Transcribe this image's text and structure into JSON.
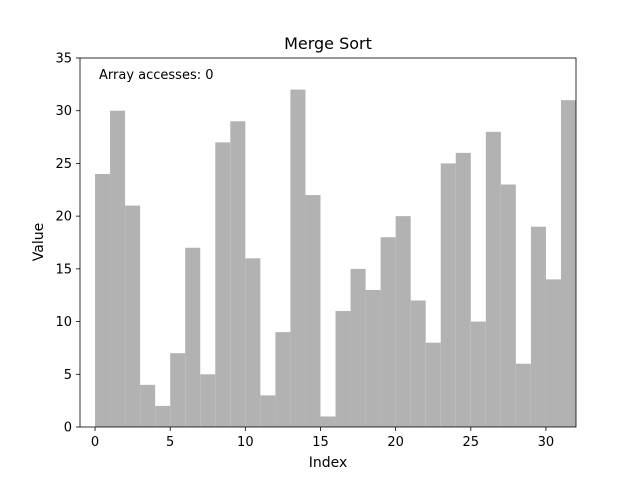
{
  "chart_data": {
    "type": "bar",
    "title": "Merge Sort",
    "xlabel": "Index",
    "ylabel": "Value",
    "annotation": "Array accesses: 0",
    "x": [
      0,
      1,
      2,
      3,
      4,
      5,
      6,
      7,
      8,
      9,
      10,
      11,
      12,
      13,
      14,
      15,
      16,
      17,
      18,
      19,
      20,
      21,
      22,
      23,
      24,
      25,
      26,
      27,
      28,
      29,
      30,
      31
    ],
    "values": [
      24,
      30,
      21,
      4,
      2,
      7,
      17,
      5,
      27,
      29,
      16,
      3,
      9,
      32,
      22,
      1,
      11,
      15,
      13,
      18,
      20,
      12,
      8,
      25,
      26,
      10,
      28,
      23,
      6,
      19,
      14,
      31
    ],
    "xlim": [
      -1,
      32
    ],
    "ylim": [
      0,
      35
    ],
    "xticks": [
      0,
      5,
      10,
      15,
      20,
      25,
      30
    ],
    "yticks": [
      0,
      5,
      10,
      15,
      20,
      25,
      30,
      35
    ],
    "bar_color": "#b2b2b2",
    "grid": false,
    "legend": "none"
  }
}
